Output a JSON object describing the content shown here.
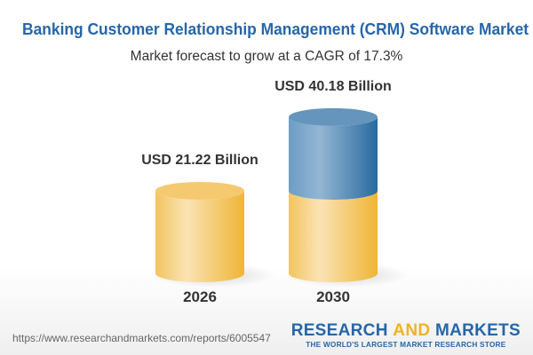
{
  "title": "Banking Customer Relationship Management (CRM) Software Market",
  "subtitle": "Market forecast to grow at a CAGR of 17.3%",
  "chart_data": {
    "type": "bar",
    "style": "3d-cylinder",
    "categories": [
      "2026",
      "2030"
    ],
    "values": [
      21.22,
      40.18
    ],
    "data_labels": [
      "USD 21.22 Billion",
      "USD 40.18 Billion"
    ],
    "unit": "USD Billion",
    "colors": {
      "base": "#f2be4c",
      "growth": "#3a78aa"
    }
  },
  "footer": {
    "url": "https://www.researchandmarkets.com/reports/6005547",
    "logo_part1": "RESEARCH ",
    "logo_part2": "AND",
    "logo_part3": " MARKETS",
    "tagline": "THE WORLD'S LARGEST MARKET RESEARCH STORE"
  }
}
